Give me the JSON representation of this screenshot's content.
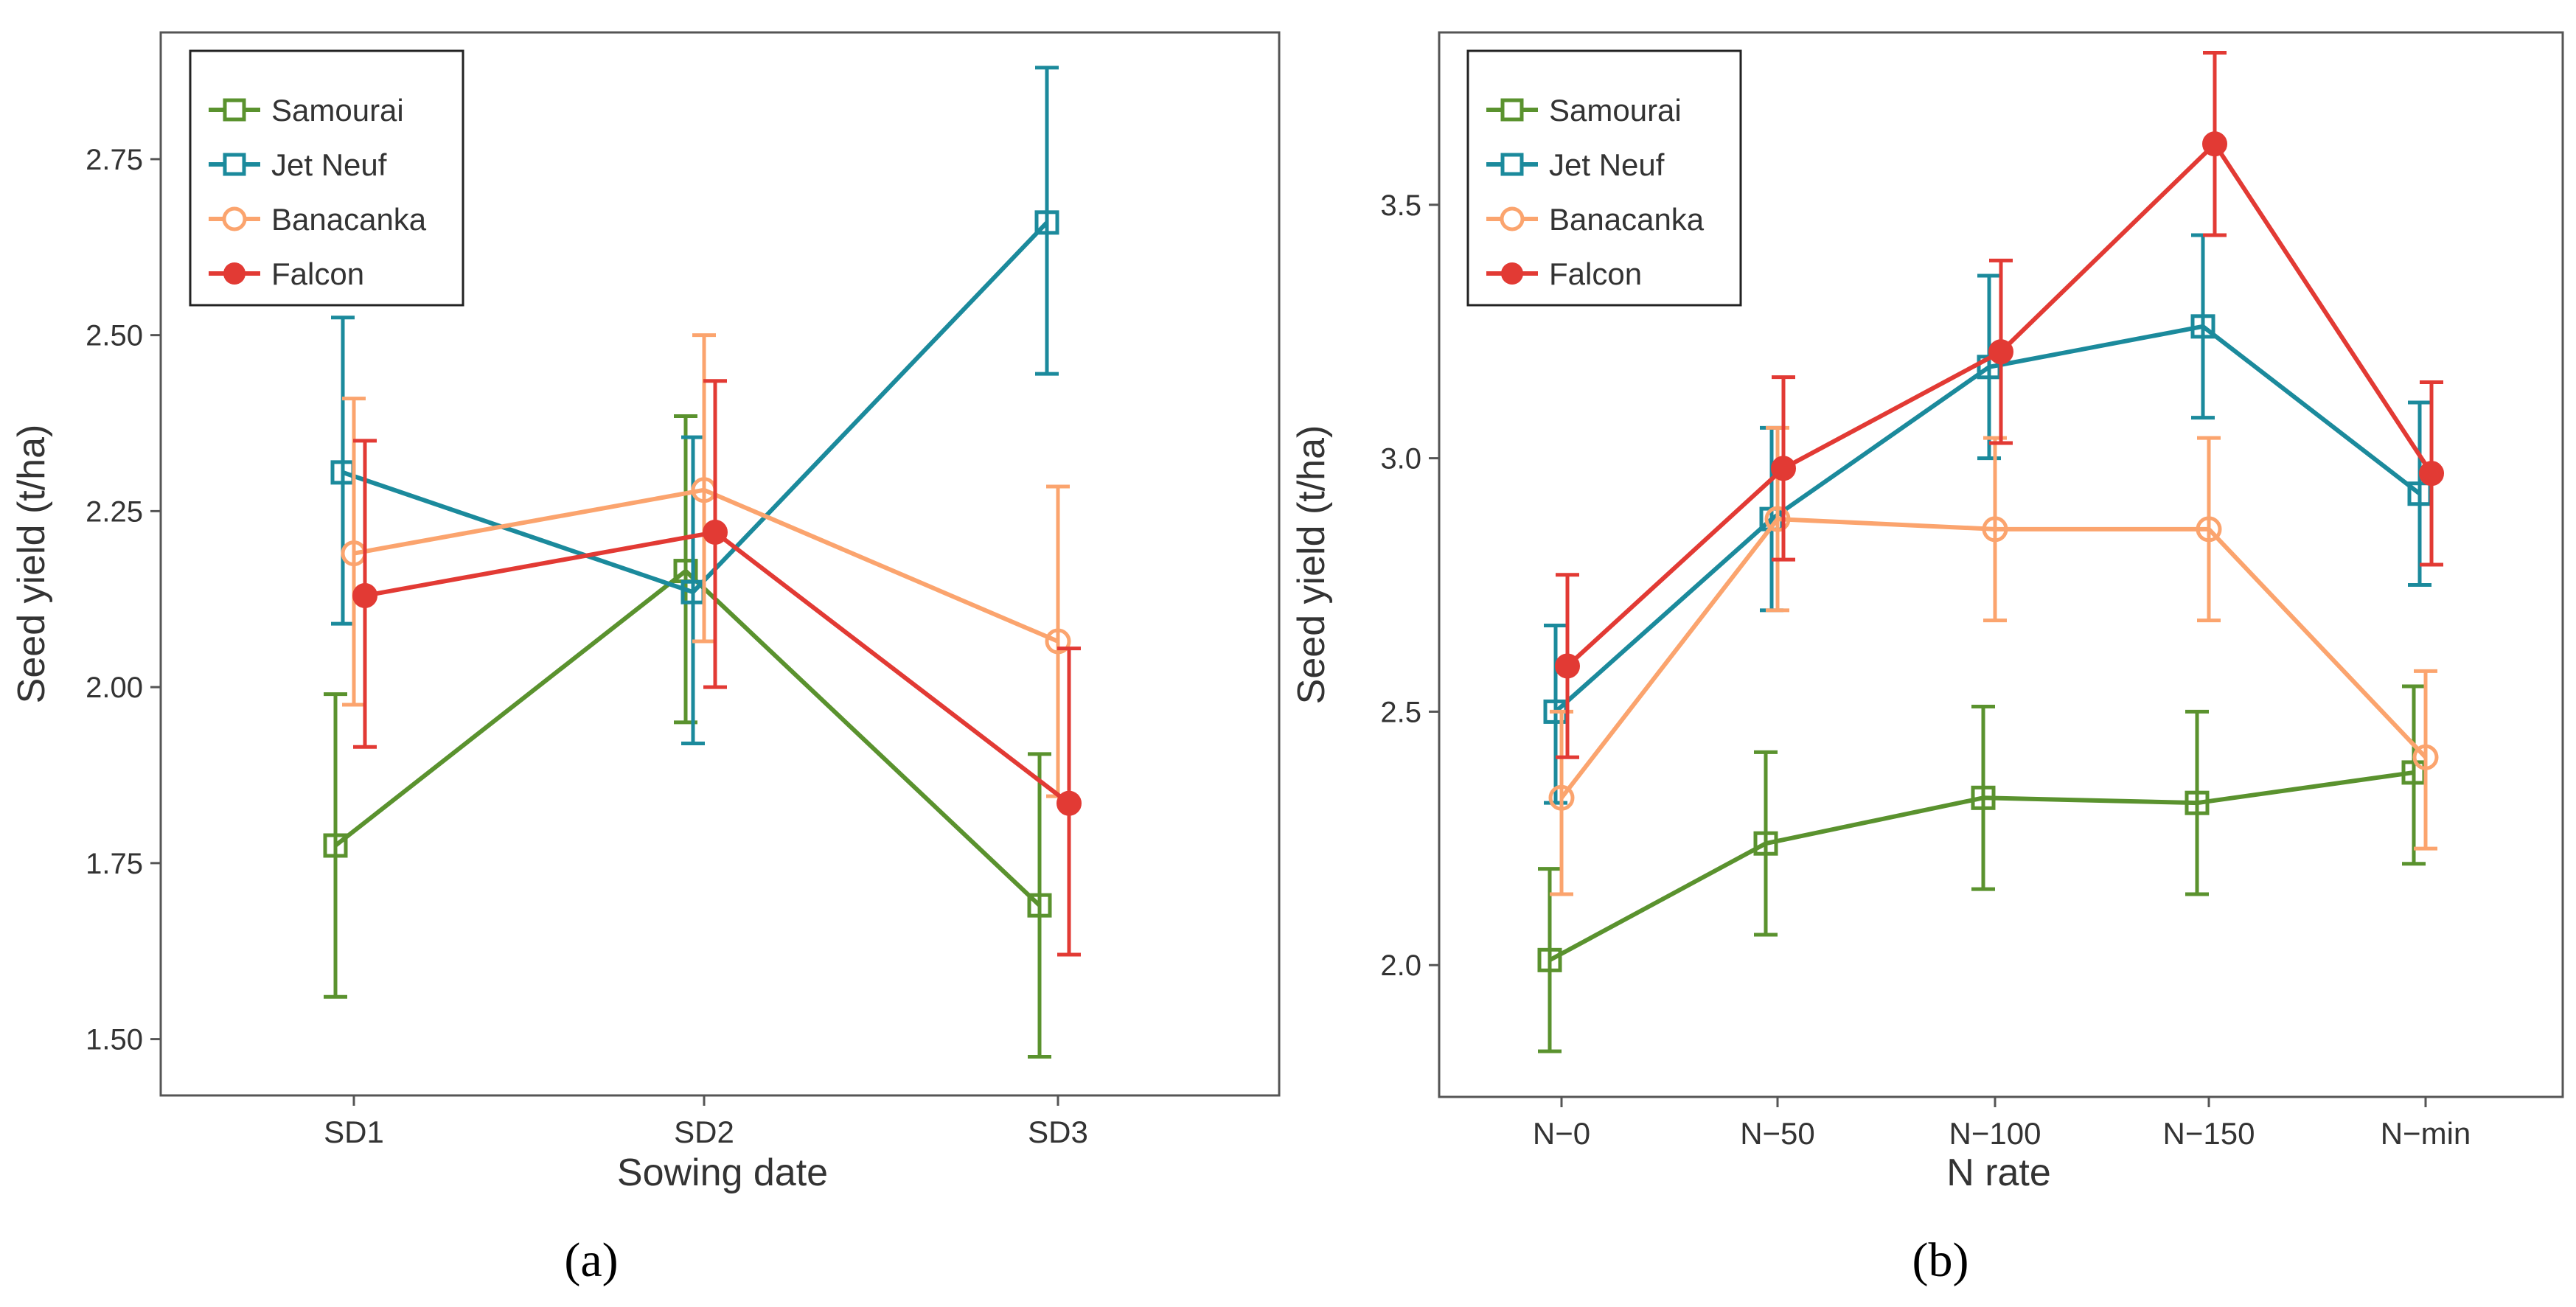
{
  "colors": {
    "Samourai": "#5a922e",
    "Jet Neuf": "#1b8a9c",
    "Banacanka": "#fba46e",
    "Falcon": "#e23a34"
  },
  "chart_data": [
    {
      "type": "line",
      "panel_label": "(a)",
      "xlabel": "Sowing date",
      "ylabel": "Seed yield (t/ha)",
      "categories": [
        "SD1",
        "SD2",
        "SD3"
      ],
      "ylim": [
        1.42,
        2.93
      ],
      "yticks": [
        "1.50",
        "1.75",
        "2.00",
        "2.25",
        "2.50",
        "2.75"
      ],
      "legend_position": "top-left",
      "legend": [
        "Samourai",
        "Jet Neuf",
        "Banacanka",
        "Falcon"
      ],
      "series": [
        {
          "name": "Samourai",
          "marker": "square-open",
          "values": [
            1.775,
            2.165,
            1.69
          ],
          "lower": [
            1.56,
            1.95,
            1.475
          ],
          "upper": [
            1.99,
            2.385,
            1.905
          ]
        },
        {
          "name": "Jet Neuf",
          "marker": "square-open",
          "values": [
            2.305,
            2.135,
            2.66
          ],
          "lower": [
            2.09,
            1.92,
            2.445
          ],
          "upper": [
            2.525,
            2.355,
            2.88
          ]
        },
        {
          "name": "Banacanka",
          "marker": "circle-open",
          "values": [
            2.19,
            2.28,
            2.065
          ],
          "lower": [
            1.975,
            2.065,
            1.845
          ],
          "upper": [
            2.41,
            2.5,
            2.285
          ]
        },
        {
          "name": "Falcon",
          "marker": "circle-filled",
          "values": [
            2.13,
            2.22,
            1.835
          ],
          "lower": [
            1.915,
            2.0,
            1.62
          ],
          "upper": [
            2.35,
            2.435,
            2.055
          ]
        }
      ]
    },
    {
      "type": "line",
      "panel_label": "(b)",
      "xlabel": "N rate",
      "ylabel": "Seed yield (t/ha)",
      "categories": [
        "N−0",
        "N−50",
        "N−100",
        "N−150",
        "N−min"
      ],
      "ylim": [
        1.74,
        3.84
      ],
      "yticks": [
        "2.0",
        "2.5",
        "3.0",
        "3.5"
      ],
      "legend_position": "top-left",
      "legend": [
        "Samourai",
        "Jet Neuf",
        "Banacanka",
        "Falcon"
      ],
      "series": [
        {
          "name": "Samourai",
          "marker": "square-open",
          "values": [
            2.01,
            2.24,
            2.33,
            2.32,
            2.38
          ],
          "lower": [
            1.83,
            2.06,
            2.15,
            2.14,
            2.2
          ],
          "upper": [
            2.19,
            2.42,
            2.51,
            2.5,
            2.55
          ]
        },
        {
          "name": "Jet Neuf",
          "marker": "square-open",
          "values": [
            2.5,
            2.88,
            3.18,
            3.26,
            2.93
          ],
          "lower": [
            2.32,
            2.7,
            3.0,
            3.08,
            2.75
          ],
          "upper": [
            2.67,
            3.06,
            3.36,
            3.44,
            3.11
          ]
        },
        {
          "name": "Banacanka",
          "marker": "circle-open",
          "values": [
            2.33,
            2.88,
            2.86,
            2.86,
            2.41
          ],
          "lower": [
            2.14,
            2.7,
            2.68,
            2.68,
            2.23
          ],
          "upper": [
            2.5,
            3.06,
            3.04,
            3.04,
            2.58
          ]
        },
        {
          "name": "Falcon",
          "marker": "circle-filled",
          "values": [
            2.59,
            2.98,
            3.21,
            3.62,
            2.97
          ],
          "lower": [
            2.41,
            2.8,
            3.03,
            3.44,
            2.79
          ],
          "upper": [
            2.77,
            3.16,
            3.39,
            3.8,
            3.15
          ]
        }
      ]
    }
  ]
}
